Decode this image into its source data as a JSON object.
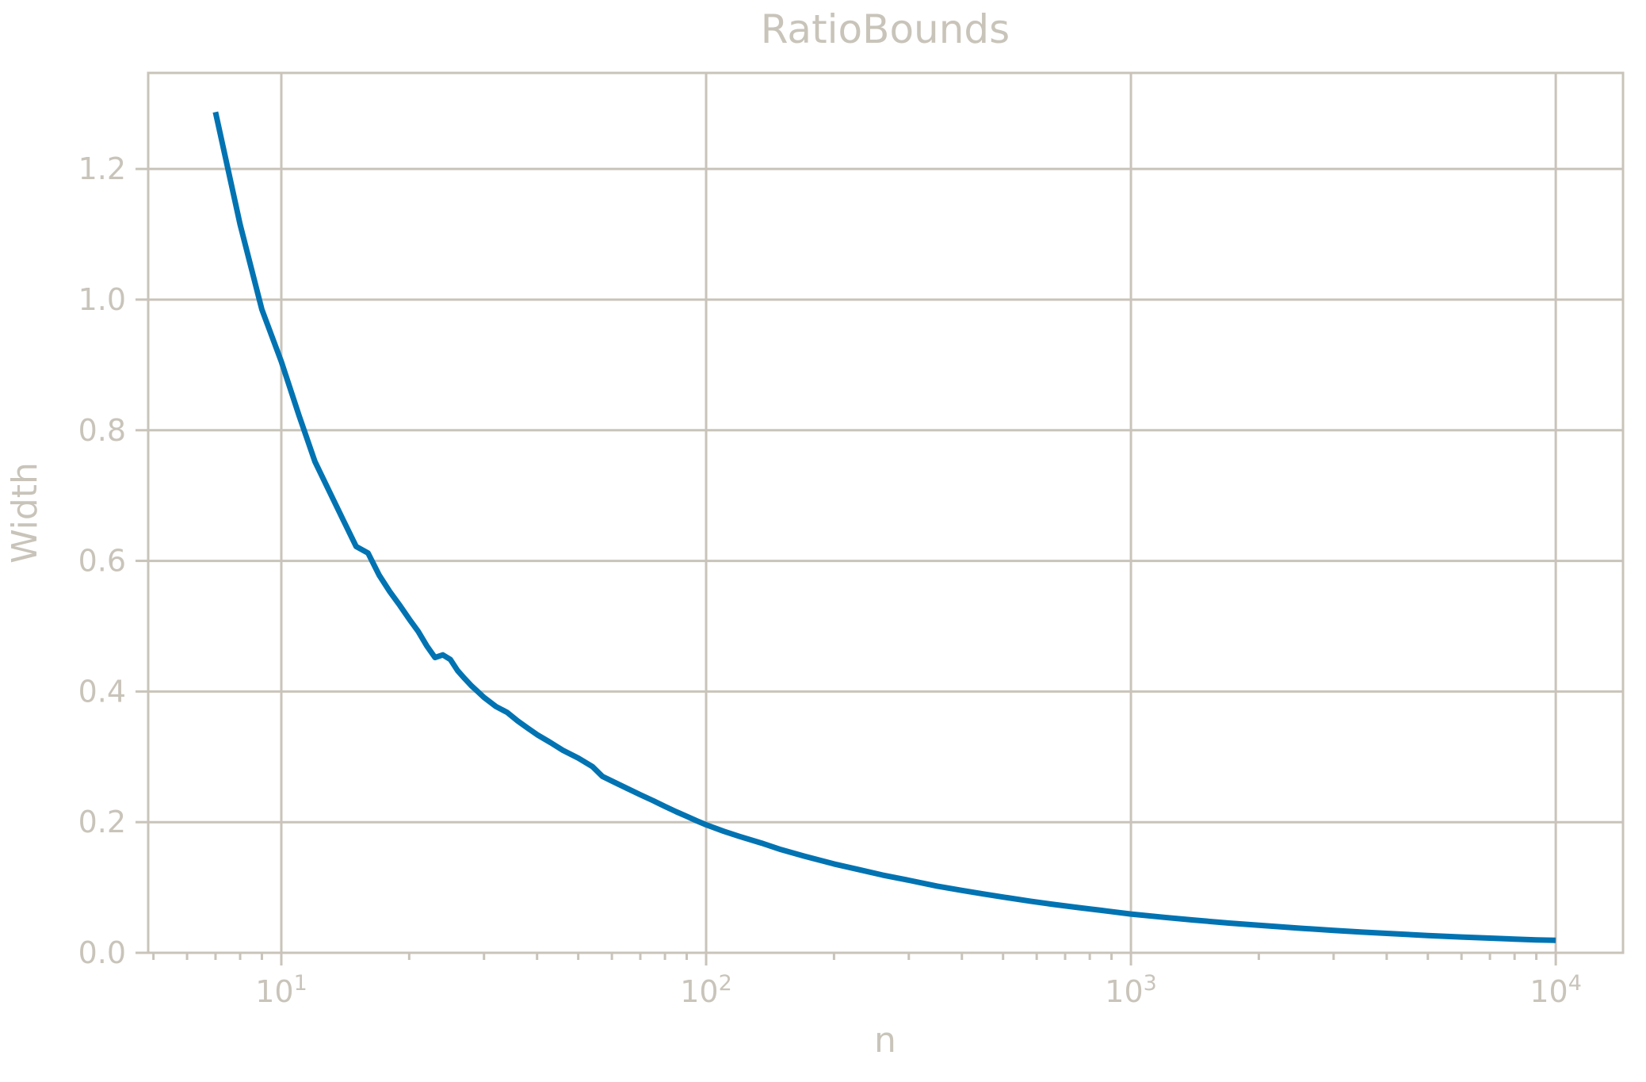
{
  "title": "RatioBounds",
  "colors": {
    "line": "#0173b2",
    "axis_gray": "#c9c4ba",
    "background": "#ffffff"
  },
  "chart_data": {
    "type": "line",
    "title": "RatioBounds",
    "xlabel": "n",
    "ylabel": "Width",
    "x_scale": "log",
    "y_scale": "linear",
    "xlim": [
      4.86,
      14400
    ],
    "ylim": [
      0,
      1.347
    ],
    "grid": true,
    "legend": "none",
    "x_major_ticks": [
      {
        "value": 10,
        "base": "10",
        "exp": "1"
      },
      {
        "value": 100,
        "base": "10",
        "exp": "2"
      },
      {
        "value": 1000,
        "base": "10",
        "exp": "3"
      },
      {
        "value": 10000,
        "base": "10",
        "exp": "4"
      }
    ],
    "x_minor_ticks": [
      5,
      6,
      7,
      8,
      9,
      20,
      30,
      40,
      50,
      60,
      70,
      80,
      90,
      200,
      300,
      400,
      500,
      600,
      700,
      800,
      900,
      2000,
      3000,
      4000,
      5000,
      6000,
      7000,
      8000,
      9000
    ],
    "y_ticks": [
      {
        "value": 0.0,
        "label": "0.0"
      },
      {
        "value": 0.2,
        "label": "0.2"
      },
      {
        "value": 0.4,
        "label": "0.4"
      },
      {
        "value": 0.6,
        "label": "0.6"
      },
      {
        "value": 0.8,
        "label": "0.8"
      },
      {
        "value": 1.0,
        "label": "1.0"
      },
      {
        "value": 1.2,
        "label": "1.2"
      }
    ],
    "series": [
      {
        "name": "Width",
        "color": "#0173b2",
        "points": [
          [
            7,
            1.287
          ],
          [
            8,
            1.115
          ],
          [
            9,
            0.985
          ],
          [
            10,
            0.905
          ],
          [
            11,
            0.823
          ],
          [
            12,
            0.752
          ],
          [
            13,
            0.705
          ],
          [
            14,
            0.662
          ],
          [
            15,
            0.622
          ],
          [
            16,
            0.612
          ],
          [
            17,
            0.578
          ],
          [
            18,
            0.553
          ],
          [
            19,
            0.532
          ],
          [
            20,
            0.511
          ],
          [
            21,
            0.492
          ],
          [
            22,
            0.47
          ],
          [
            23,
            0.452
          ],
          [
            24,
            0.456
          ],
          [
            25,
            0.449
          ],
          [
            26,
            0.432
          ],
          [
            27,
            0.42
          ],
          [
            28,
            0.409
          ],
          [
            29,
            0.4
          ],
          [
            30,
            0.391
          ],
          [
            32,
            0.377
          ],
          [
            34,
            0.368
          ],
          [
            36,
            0.355
          ],
          [
            38,
            0.344
          ],
          [
            40,
            0.334
          ],
          [
            43,
            0.322
          ],
          [
            46,
            0.31
          ],
          [
            50,
            0.298
          ],
          [
            54,
            0.285
          ],
          [
            57,
            0.27
          ],
          [
            60,
            0.263
          ],
          [
            65,
            0.252
          ],
          [
            70,
            0.242
          ],
          [
            75,
            0.233
          ],
          [
            80,
            0.224
          ],
          [
            85,
            0.216
          ],
          [
            90,
            0.209
          ],
          [
            95,
            0.202
          ],
          [
            100,
            0.196
          ],
          [
            110,
            0.186
          ],
          [
            120,
            0.178
          ],
          [
            135,
            0.168
          ],
          [
            150,
            0.158
          ],
          [
            170,
            0.148
          ],
          [
            200,
            0.136
          ],
          [
            230,
            0.127
          ],
          [
            260,
            0.119
          ],
          [
            300,
            0.111
          ],
          [
            350,
            0.102
          ],
          [
            400,
            0.0955
          ],
          [
            450,
            0.09
          ],
          [
            500,
            0.0853
          ],
          [
            580,
            0.079
          ],
          [
            650,
            0.0745
          ],
          [
            750,
            0.0693
          ],
          [
            850,
            0.065
          ],
          [
            1000,
            0.0594
          ],
          [
            1200,
            0.0542
          ],
          [
            1400,
            0.0502
          ],
          [
            1700,
            0.0455
          ],
          [
            2000,
            0.0421
          ],
          [
            2500,
            0.0376
          ],
          [
            3000,
            0.0343
          ],
          [
            3500,
            0.0317
          ],
          [
            4000,
            0.0297
          ],
          [
            5000,
            0.0265
          ],
          [
            6000,
            0.0242
          ],
          [
            7000,
            0.0224
          ],
          [
            8000,
            0.021
          ],
          [
            9000,
            0.0198
          ],
          [
            10000,
            0.0192
          ]
        ]
      }
    ]
  }
}
